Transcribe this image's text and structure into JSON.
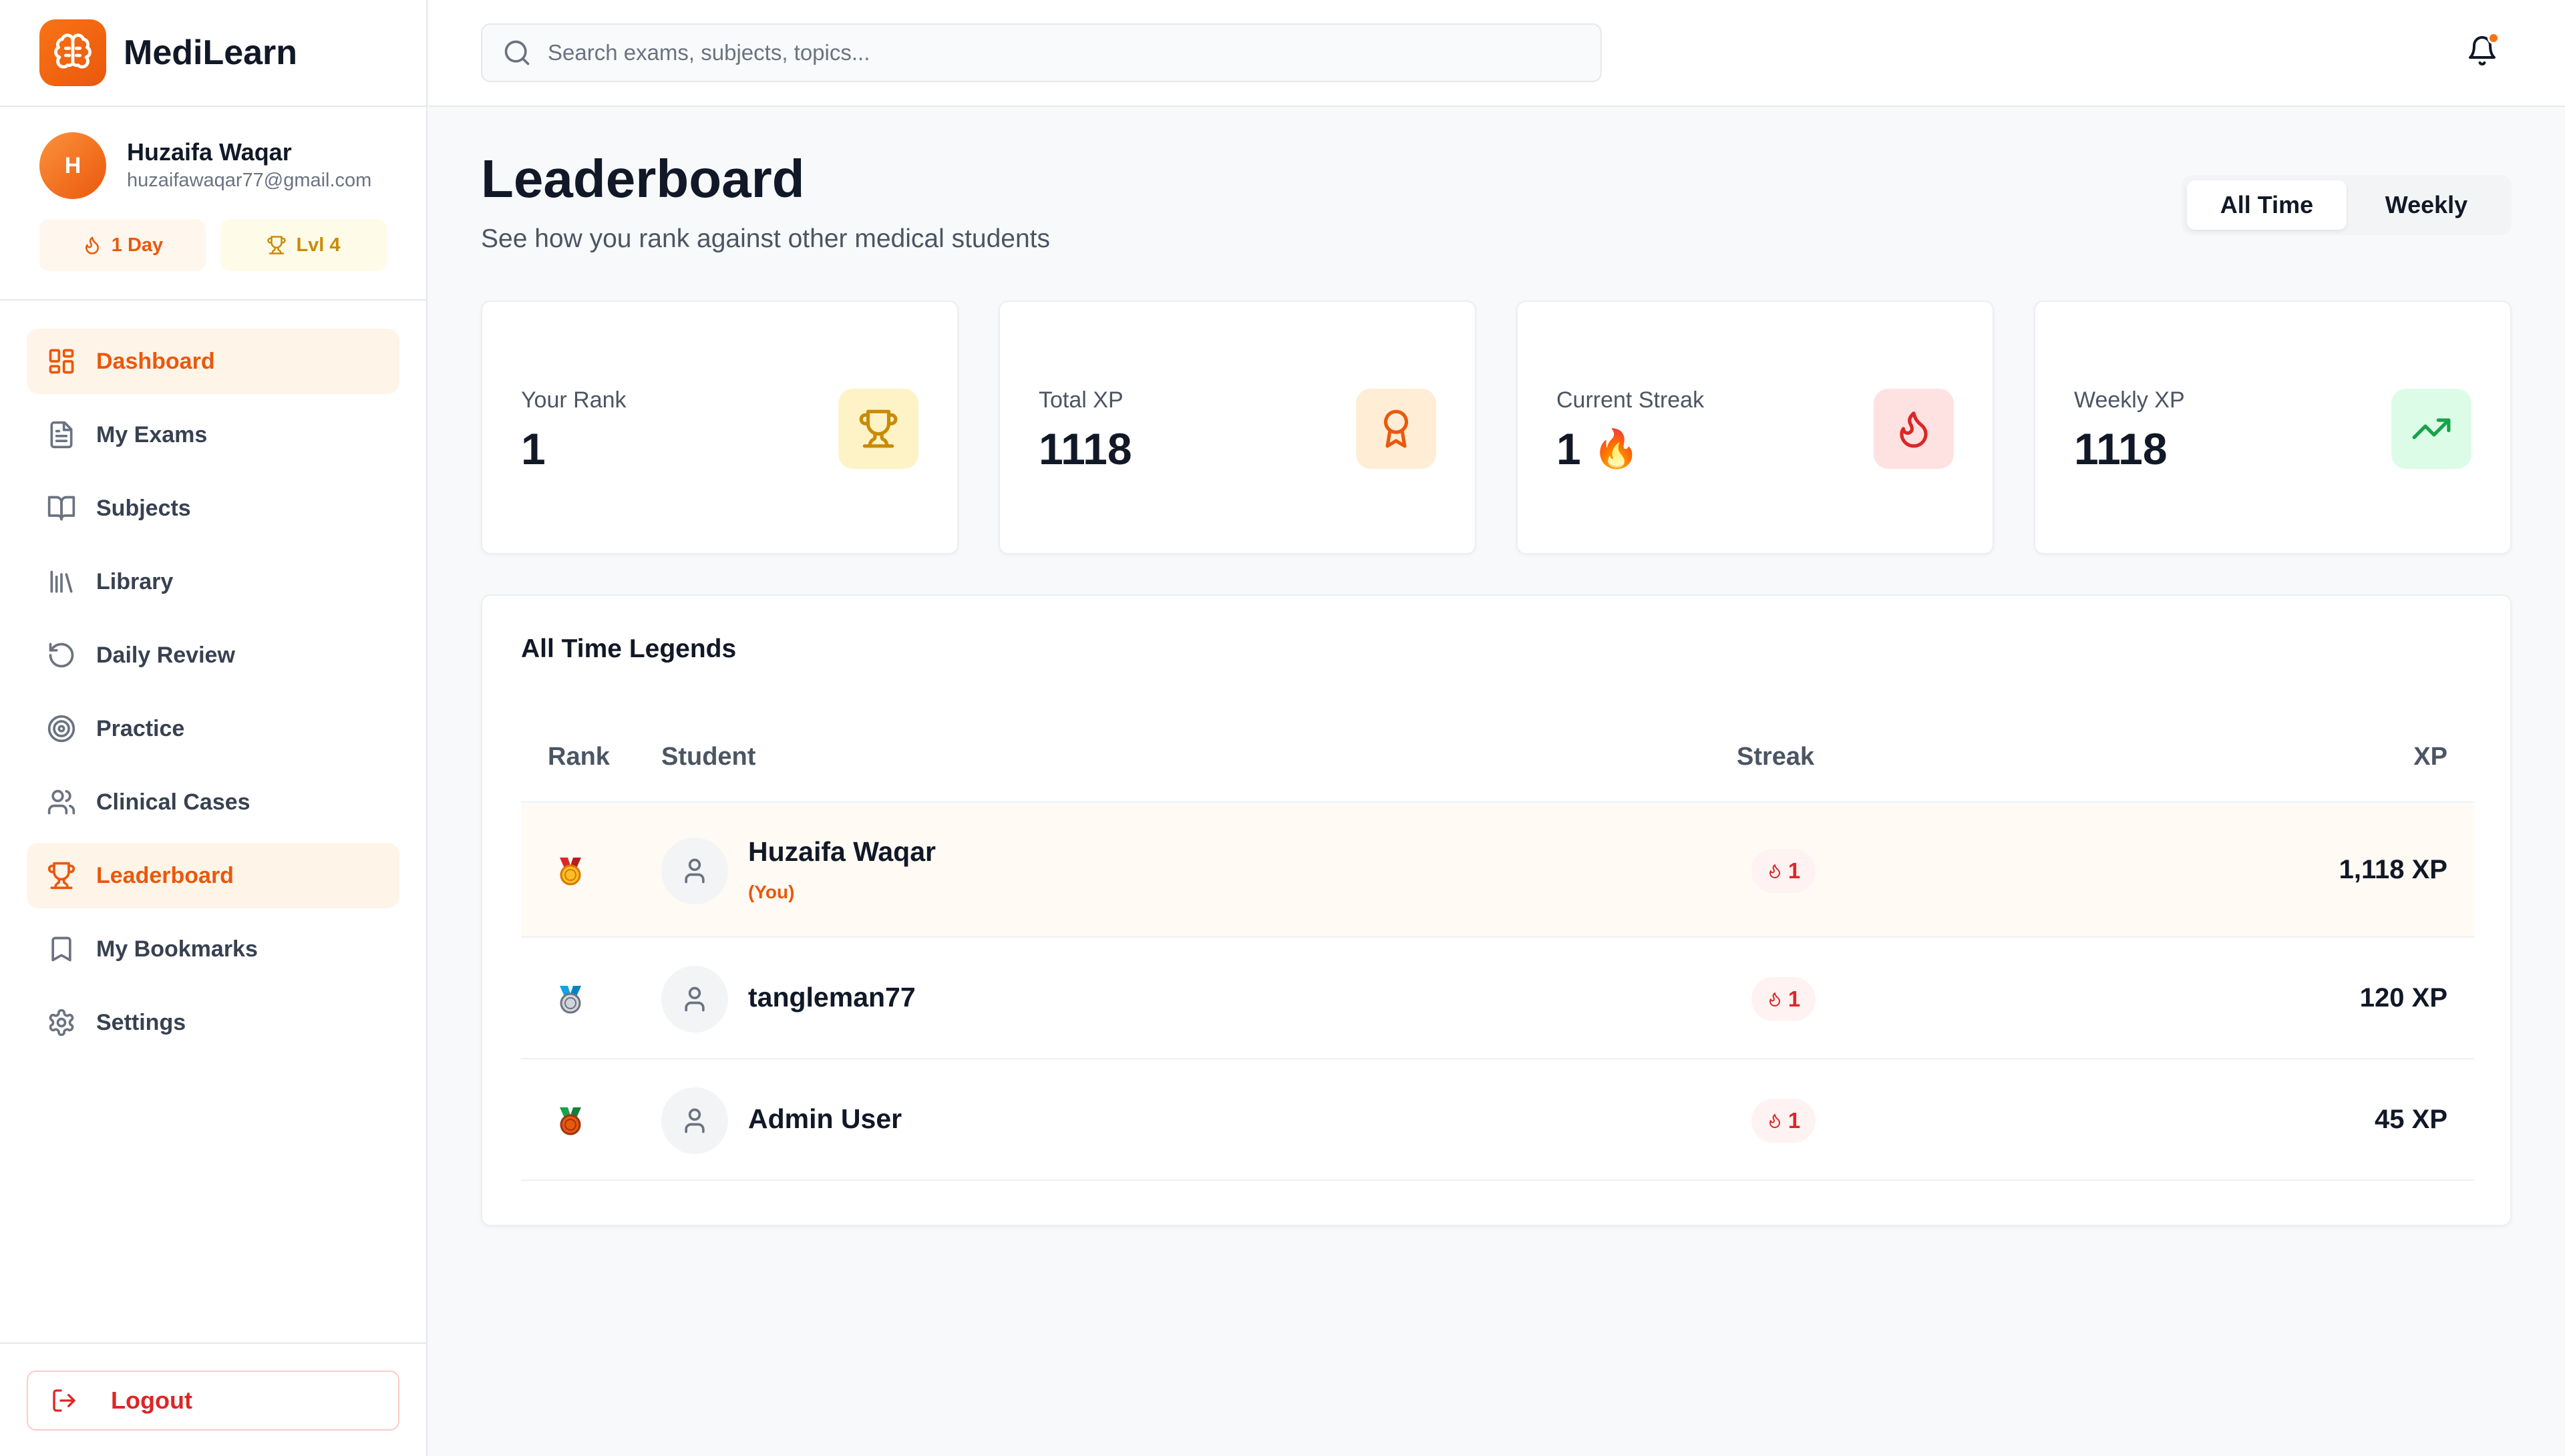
{
  "app": {
    "name": "MediLearn"
  },
  "user": {
    "initial": "H",
    "name": "Huzaifa Waqar",
    "email": "huzaifawaqar77@gmail.com",
    "streak_pill": "1 Day",
    "level_pill": "Lvl 4"
  },
  "nav": {
    "items": [
      {
        "label": "Dashboard",
        "icon": "dashboard-grid-icon",
        "active": true
      },
      {
        "label": "My Exams",
        "icon": "file-text-icon"
      },
      {
        "label": "Subjects",
        "icon": "book-open-icon"
      },
      {
        "label": "Library",
        "icon": "library-icon"
      },
      {
        "label": "Daily Review",
        "icon": "rotate-ccw-icon"
      },
      {
        "label": "Practice",
        "icon": "target-icon"
      },
      {
        "label": "Clinical Cases",
        "icon": "users-icon"
      },
      {
        "label": "Leaderboard",
        "icon": "trophy-icon",
        "active": true
      },
      {
        "label": "My Bookmarks",
        "icon": "bookmark-icon"
      },
      {
        "label": "Settings",
        "icon": "gear-icon"
      }
    ],
    "logout_label": "Logout"
  },
  "search": {
    "placeholder": "Search exams, subjects, topics..."
  },
  "page": {
    "title": "Leaderboard",
    "subtitle": "See how you rank against other medical students",
    "toggle": {
      "all_time": "All Time",
      "weekly": "Weekly",
      "selected": "All Time"
    }
  },
  "stats": [
    {
      "label": "Your Rank",
      "value": "1",
      "icon": "trophy-icon",
      "color": "#ca8a04"
    },
    {
      "label": "Total XP",
      "value": "1118",
      "icon": "award-icon",
      "color": "#ea580c"
    },
    {
      "label": "Current Streak",
      "value": "1",
      "emoji": "🔥",
      "icon": "flame-icon",
      "color": "#dc2626"
    },
    {
      "label": "Weekly XP",
      "value": "1118",
      "icon": "trending-up-icon",
      "color": "#16a34a"
    }
  ],
  "board": {
    "title": "All Time Legends",
    "columns": {
      "rank": "Rank",
      "student": "Student",
      "streak": "Streak",
      "xp": "XP"
    },
    "rows": [
      {
        "medal": "gold-medal-icon",
        "name": "Huzaifa Waqar",
        "you_label": "(You)",
        "streak": "1",
        "xp": "1,118 XP"
      },
      {
        "medal": "silver-medal-icon",
        "name": "tangleman77",
        "streak": "1",
        "xp": "120 XP"
      },
      {
        "medal": "bronze-medal-icon",
        "name": "Admin User",
        "streak": "1",
        "xp": "45 XP"
      }
    ]
  },
  "colors": {
    "accent": "#ea580c",
    "accent_bg": "#fff4e8",
    "danger": "#dc2626",
    "text": "#111827",
    "muted": "#4b5563"
  }
}
